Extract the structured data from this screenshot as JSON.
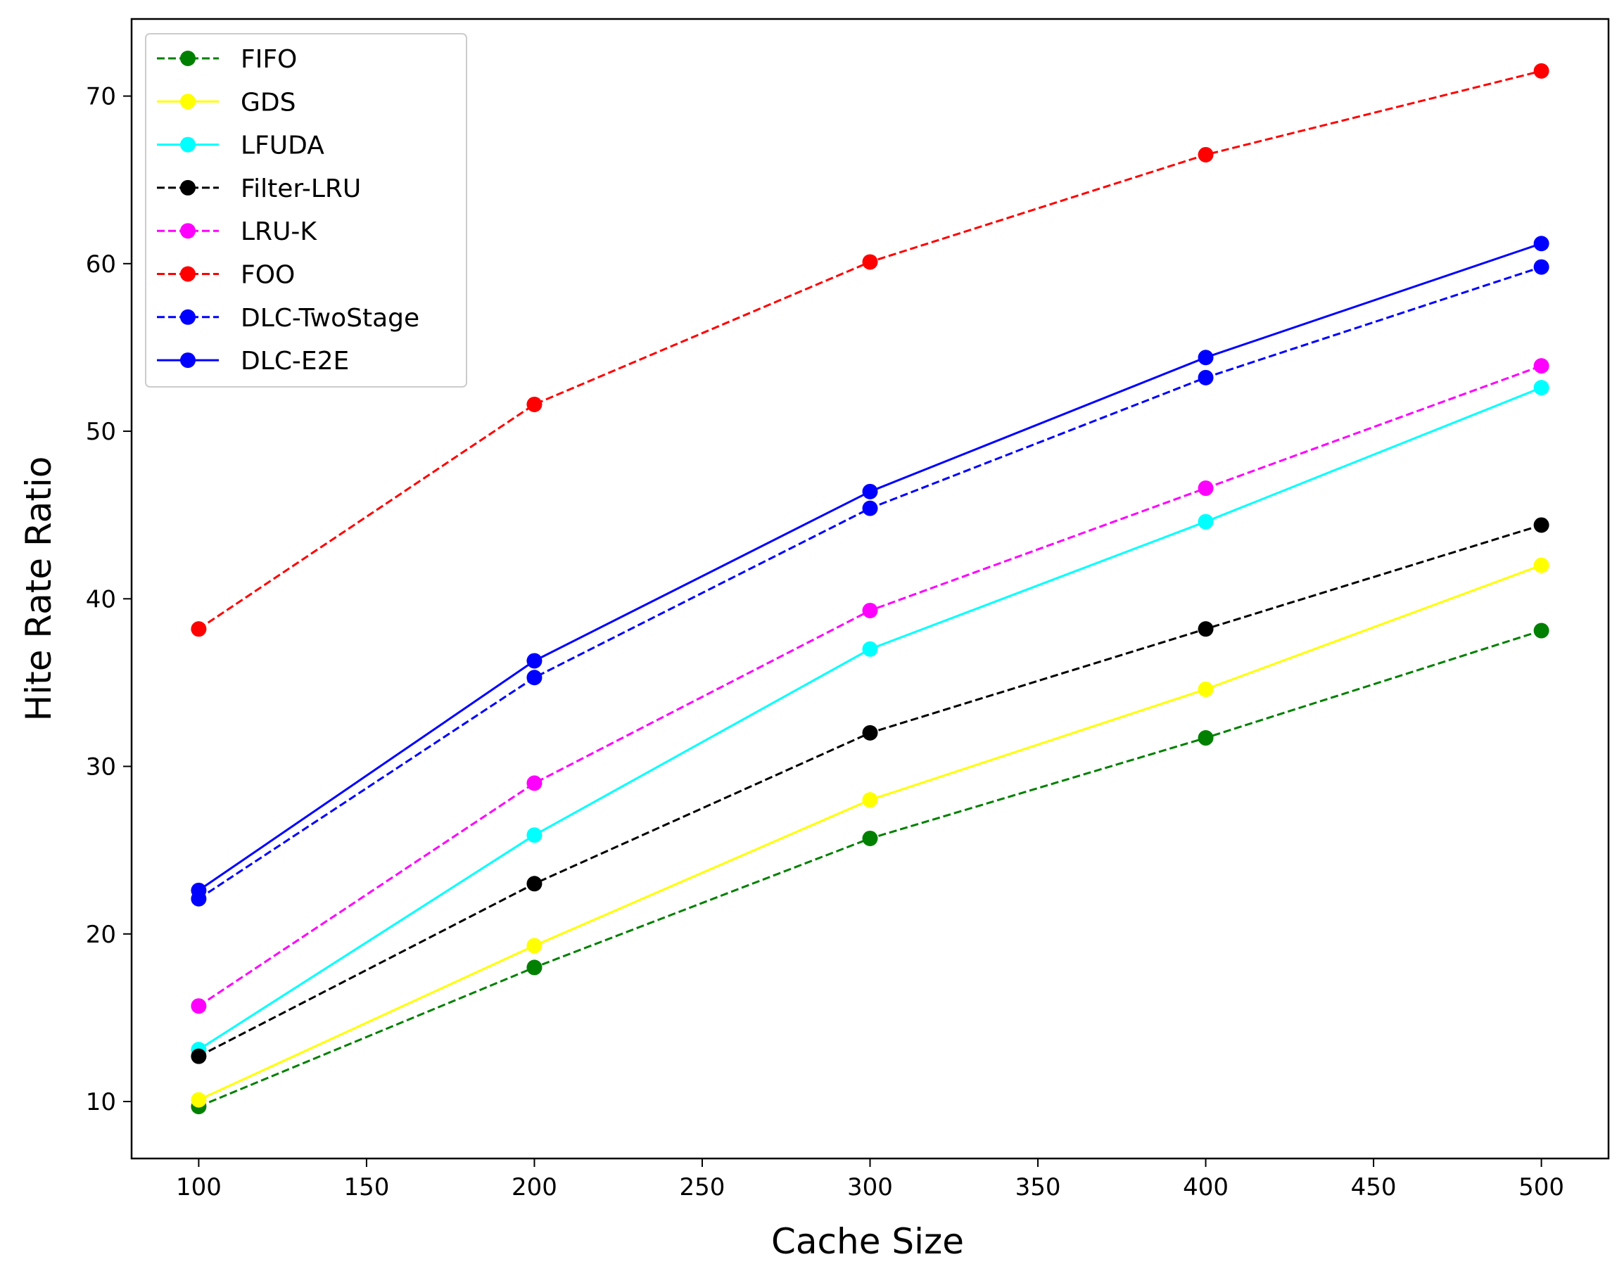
{
  "chart_data": {
    "type": "line",
    "title": "",
    "xlabel": "Cache Size",
    "ylabel": "Hite Rate Ratio",
    "x": [
      100,
      200,
      300,
      400,
      500
    ],
    "xlim": [
      80,
      520
    ],
    "ylim": [
      6.6,
      74.6
    ],
    "xticks": [
      100,
      150,
      200,
      250,
      300,
      350,
      400,
      450,
      500
    ],
    "yticks": [
      10,
      20,
      30,
      40,
      50,
      60,
      70
    ],
    "grid": false,
    "legend_position": "upper-left",
    "series": [
      {
        "name": "FIFO",
        "color": "#008000",
        "dashed": true,
        "values": [
          9.7,
          18.0,
          25.7,
          31.7,
          38.1
        ]
      },
      {
        "name": "GDS",
        "color": "#ffff00",
        "dashed": false,
        "values": [
          10.1,
          19.3,
          28.0,
          34.6,
          42.0
        ]
      },
      {
        "name": "LFUDA",
        "color": "#00ffff",
        "dashed": false,
        "values": [
          13.1,
          25.9,
          37.0,
          44.6,
          52.6
        ]
      },
      {
        "name": "Filter-LRU",
        "color": "#000000",
        "dashed": true,
        "values": [
          12.7,
          23.0,
          32.0,
          38.2,
          44.4
        ]
      },
      {
        "name": "LRU-K",
        "color": "#ff00ff",
        "dashed": true,
        "values": [
          15.7,
          29.0,
          39.3,
          46.6,
          53.9
        ]
      },
      {
        "name": "FOO",
        "color": "#ff0000",
        "dashed": true,
        "values": [
          38.2,
          51.6,
          60.1,
          66.5,
          71.5
        ]
      },
      {
        "name": "DLC-TwoStage",
        "color": "#0000ff",
        "dashed": true,
        "values": [
          22.1,
          35.3,
          45.4,
          53.2,
          59.8
        ]
      },
      {
        "name": "DLC-E2E",
        "color": "#0000ff",
        "dashed": false,
        "values": [
          22.6,
          36.3,
          46.4,
          54.4,
          61.2
        ]
      }
    ]
  }
}
